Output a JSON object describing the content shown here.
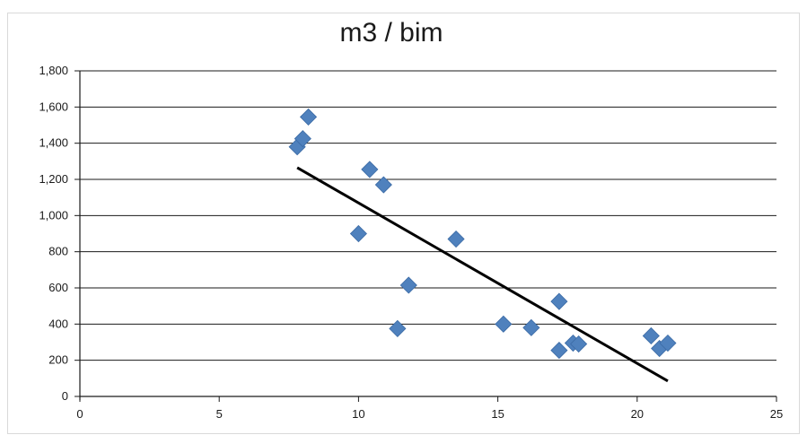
{
  "chart_data": {
    "type": "scatter",
    "title": "m3 / bim",
    "xlabel": "",
    "ylabel": "",
    "xlim": [
      0,
      25
    ],
    "ylim": [
      0,
      1800
    ],
    "x_ticks": [
      0,
      5,
      10,
      15,
      20,
      25
    ],
    "y_ticks": [
      0,
      200,
      400,
      600,
      800,
      1000,
      1200,
      1400,
      1600,
      1800
    ],
    "x_tick_labels": [
      "0",
      "5",
      "10",
      "15",
      "20",
      "25"
    ],
    "y_tick_labels": [
      "0",
      "200",
      "400",
      "600",
      "800",
      "1,000",
      "1,200",
      "1,400",
      "1,600",
      "1,800"
    ],
    "grid": "horizontal",
    "legend": "none",
    "marker_color": "#4f81bd",
    "trendline_color": "#000000",
    "points": [
      {
        "x": 7.8,
        "y": 1380
      },
      {
        "x": 8.0,
        "y": 1425
      },
      {
        "x": 8.2,
        "y": 1545
      },
      {
        "x": 10.0,
        "y": 900
      },
      {
        "x": 10.4,
        "y": 1255
      },
      {
        "x": 10.9,
        "y": 1170
      },
      {
        "x": 11.4,
        "y": 375
      },
      {
        "x": 11.8,
        "y": 615
      },
      {
        "x": 13.5,
        "y": 870
      },
      {
        "x": 15.2,
        "y": 400
      },
      {
        "x": 16.2,
        "y": 380
      },
      {
        "x": 17.2,
        "y": 525
      },
      {
        "x": 17.2,
        "y": 255
      },
      {
        "x": 17.7,
        "y": 295
      },
      {
        "x": 17.9,
        "y": 290
      },
      {
        "x": 20.5,
        "y": 335
      },
      {
        "x": 20.8,
        "y": 265
      },
      {
        "x": 21.1,
        "y": 295
      }
    ],
    "trendline": {
      "x": [
        7.8,
        21.1
      ],
      "y": [
        1265,
        85
      ]
    }
  }
}
